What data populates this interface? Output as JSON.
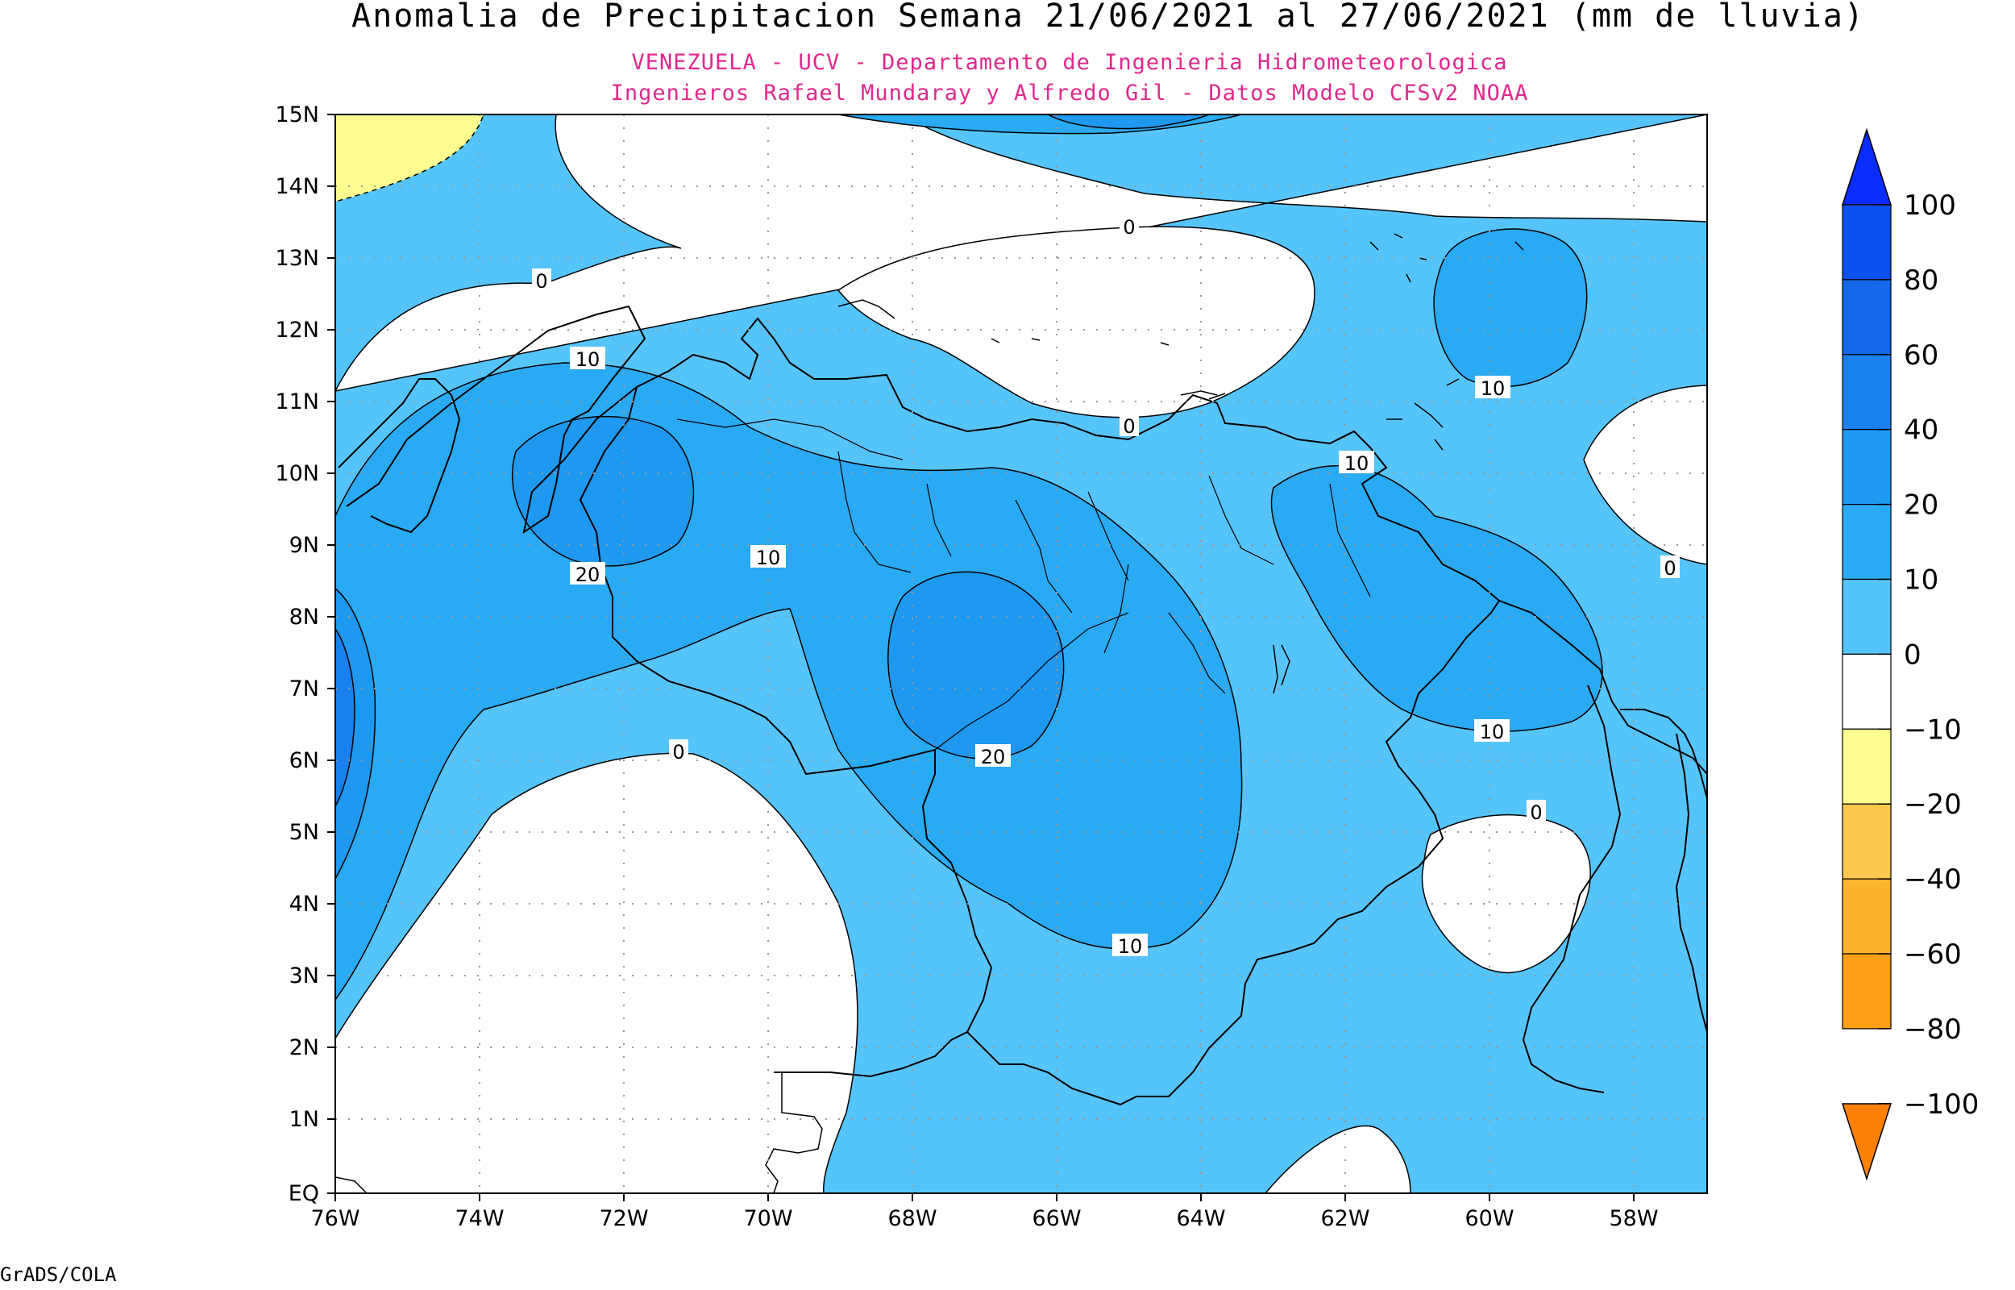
{
  "title": "Anomalia de Precipitacion Semana 21/06/2021 al 27/06/2021 (mm de lluvia)",
  "subtitle_1": "VENEZUELA - UCV - Departamento de Ingenieria Hidrometeorologica",
  "subtitle_2": "Ingenieros Rafael Mundaray y Alfredo Gil - Datos Modelo CFSv2 NOAA",
  "footer": "GrADS/COLA",
  "axes": {
    "lat_ticks": [
      "15N",
      "14N",
      "13N",
      "12N",
      "11N",
      "10N",
      "9N",
      "8N",
      "7N",
      "6N",
      "5N",
      "4N",
      "3N",
      "2N",
      "1N",
      "EQ"
    ],
    "lon_ticks": [
      "76W",
      "74W",
      "72W",
      "70W",
      "68W",
      "66W",
      "64W",
      "62W",
      "60W",
      "58W"
    ]
  },
  "colorbar": {
    "labels": [
      "100",
      "80",
      "60",
      "40",
      "20",
      "10",
      "0",
      "−10",
      "−20",
      "−40",
      "−60",
      "−80",
      "−100"
    ],
    "colors": [
      "#0a2cff",
      "#0d50f0",
      "#1367e8",
      "#1a80ee",
      "#1f98f0",
      "#2aaaf2",
      "#55c4fa",
      "#ffffff",
      "#fefe90",
      "#fdc850",
      "#fdb330",
      "#fd9f18",
      "#fd8008"
    ]
  },
  "contour_labels": [
    {
      "text": "0"
    },
    {
      "text": "0"
    },
    {
      "text": "0"
    },
    {
      "text": "0"
    },
    {
      "text": "0"
    },
    {
      "text": "0"
    },
    {
      "text": "10"
    },
    {
      "text": "10"
    },
    {
      "text": "10"
    },
    {
      "text": "10"
    },
    {
      "text": "10"
    },
    {
      "text": "10"
    },
    {
      "text": "20"
    },
    {
      "text": "20"
    }
  ]
}
